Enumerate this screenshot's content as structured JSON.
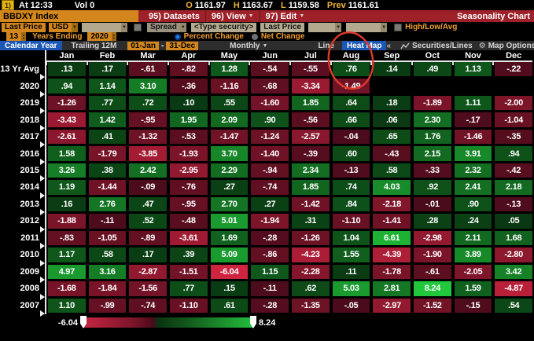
{
  "quote_bar": {
    "ticker_flash": "1)",
    "at_label": "At",
    "time": "12:33",
    "vol_label": "Vol",
    "vol_value": "0",
    "stats": [
      {
        "label": "O",
        "value": "1161.97"
      },
      {
        "label": "H",
        "value": "1163.67"
      },
      {
        "label": "L",
        "value": "1159.58"
      },
      {
        "label": "Prev",
        "value": "1161.61"
      }
    ]
  },
  "menu_bar": {
    "security_name": "BBDXY Index",
    "datasets": "95) Datasets",
    "view": "96) View",
    "edit": "97) Edit",
    "title": "Seasonality Chart"
  },
  "field_bar": {
    "last_price": "Last Price",
    "currency": "USD",
    "spread": "Spread",
    "type_security": "<Type security>",
    "last_price_2": "Last Price",
    "high_low_avg": "High/Low/Avg"
  },
  "range_bar": {
    "years_value": "13",
    "years_ending_label": "Years Ending",
    "year_value": "2020",
    "percent_change_label": "Percent Change",
    "net_change_label": "Net Change",
    "selected": "Percent Change"
  },
  "view_bar": {
    "calendar_year": "Calendar Year",
    "trailing_12m": "Trailing 12M",
    "range_start": "01-Jan",
    "range_dash": "-",
    "range_end": "31-Dec",
    "period": "Monthly",
    "line": "Line",
    "heat_map": "Heat Map",
    "collapse": "«",
    "securities_lines": "Securities/Lines",
    "map_options": "Map Options",
    "selected_tabs": [
      "Calendar Year",
      "Heat Map"
    ]
  },
  "chart_data": {
    "type": "heatmap",
    "title": "Seasonality Chart",
    "subtitle": "BBDXY Index monthly percent change seasonality, 13 years ending 2020",
    "columns": [
      "Jan",
      "Feb",
      "Mar",
      "Apr",
      "May",
      "Jun",
      "Jul",
      "Aug",
      "Sep",
      "Oct",
      "Nov",
      "Dec"
    ],
    "rows": [
      {
        "label": "13 Yr Avg",
        "values": [
          ".13",
          ".17",
          "-.61",
          "-.82",
          "1.28",
          "-.54",
          "-.55",
          ".76",
          ".14",
          ".49",
          "1.13",
          "-.22"
        ]
      },
      {
        "label": "2020",
        "values": [
          ".94",
          "1.14",
          "3.10",
          "-.36",
          "-1.16",
          "-.68",
          "-3.34",
          "-1.49",
          null,
          null,
          null,
          null
        ]
      },
      {
        "label": "2019",
        "values": [
          "-1.26",
          ".77",
          ".72",
          ".10",
          ".55",
          "-1.60",
          "1.85",
          ".64",
          ".18",
          "-1.89",
          "1.11",
          "-2.00"
        ]
      },
      {
        "label": "2018",
        "values": [
          "-3.43",
          "1.42",
          "-.95",
          "1.95",
          "2.09",
          ".90",
          "-.56",
          ".66",
          ".06",
          "2.30",
          "-.17",
          "-1.04"
        ]
      },
      {
        "label": "2017",
        "values": [
          "-2.61",
          ".41",
          "-1.32",
          "-.53",
          "-1.47",
          "-1.24",
          "-2.57",
          "-.04",
          ".65",
          "1.76",
          "-1.46",
          "-.35"
        ]
      },
      {
        "label": "2016",
        "values": [
          "1.58",
          "-1.79",
          "-3.85",
          "-1.93",
          "3.70",
          "-1.40",
          "-.39",
          ".60",
          "-.43",
          "2.15",
          "3.91",
          ".94"
        ]
      },
      {
        "label": "2015",
        "values": [
          "3.26",
          ".38",
          "2.42",
          "-2.95",
          "2.29",
          "-.94",
          "2.34",
          "-.13",
          ".58",
          "-.33",
          "2.32",
          "-.42"
        ]
      },
      {
        "label": "2014",
        "values": [
          "1.19",
          "-1.44",
          "-.09",
          "-.76",
          ".27",
          "-.74",
          "1.85",
          ".74",
          "4.03",
          ".92",
          "2.41",
          "2.18"
        ]
      },
      {
        "label": "2013",
        "values": [
          ".16",
          "2.76",
          ".47",
          "-.95",
          "2.70",
          ".27",
          "-1.42",
          ".84",
          "-2.18",
          "-.01",
          ".90",
          "-.13"
        ]
      },
      {
        "label": "2012",
        "values": [
          "-1.88",
          "-.11",
          ".52",
          "-.48",
          "5.01",
          "-1.94",
          ".31",
          "-1.10",
          "-1.41",
          ".28",
          ".24",
          ".05"
        ]
      },
      {
        "label": "2011",
        "values": [
          "-.83",
          "-1.05",
          "-.89",
          "-3.61",
          "1.69",
          "-.28",
          "-1.26",
          "1.04",
          "6.61",
          "-2.98",
          "2.11",
          "1.68"
        ]
      },
      {
        "label": "2010",
        "values": [
          "1.17",
          ".58",
          ".17",
          ".39",
          "5.09",
          "-.86",
          "-4.23",
          "1.55",
          "-4.39",
          "-1.90",
          "3.89",
          "-2.80"
        ]
      },
      {
        "label": "2009",
        "values": [
          "4.97",
          "3.16",
          "-2.87",
          "-1.51",
          "-6.04",
          "1.15",
          "-2.28",
          ".11",
          "-1.78",
          "-.61",
          "-2.05",
          "3.42"
        ]
      },
      {
        "label": "2008",
        "values": [
          "-1.68",
          "-1.84",
          "-1.56",
          ".77",
          ".15",
          "-.11",
          ".62",
          "5.03",
          "2.81",
          "8.24",
          "1.59",
          "-4.87"
        ]
      },
      {
        "label": "2007",
        "values": [
          "1.10",
          "-.99",
          "-.74",
          "-1.10",
          ".61",
          "-.28",
          "-1.35",
          "-.05",
          "-2.97",
          "-1.52",
          "-.15",
          ".54"
        ]
      }
    ],
    "color_scale": {
      "min": -6.04,
      "max": 8.24,
      "negative_bright": "#ce2440",
      "negative_dark": "#490b1b",
      "positive_dark": "#09350f",
      "positive_bright": "#22c83c"
    },
    "annotation": "hand-drawn red circle around Aug column values .76 and -1.49"
  },
  "legend": {
    "min": "-6.04",
    "max": "8.24"
  },
  "colors": {
    "amber_button": "#d2861c",
    "menu_bar_red": "#9e2028",
    "selected_blue": "#1b57b5",
    "orange_label": "#f09e32",
    "annotation_red": "#e0392a"
  }
}
